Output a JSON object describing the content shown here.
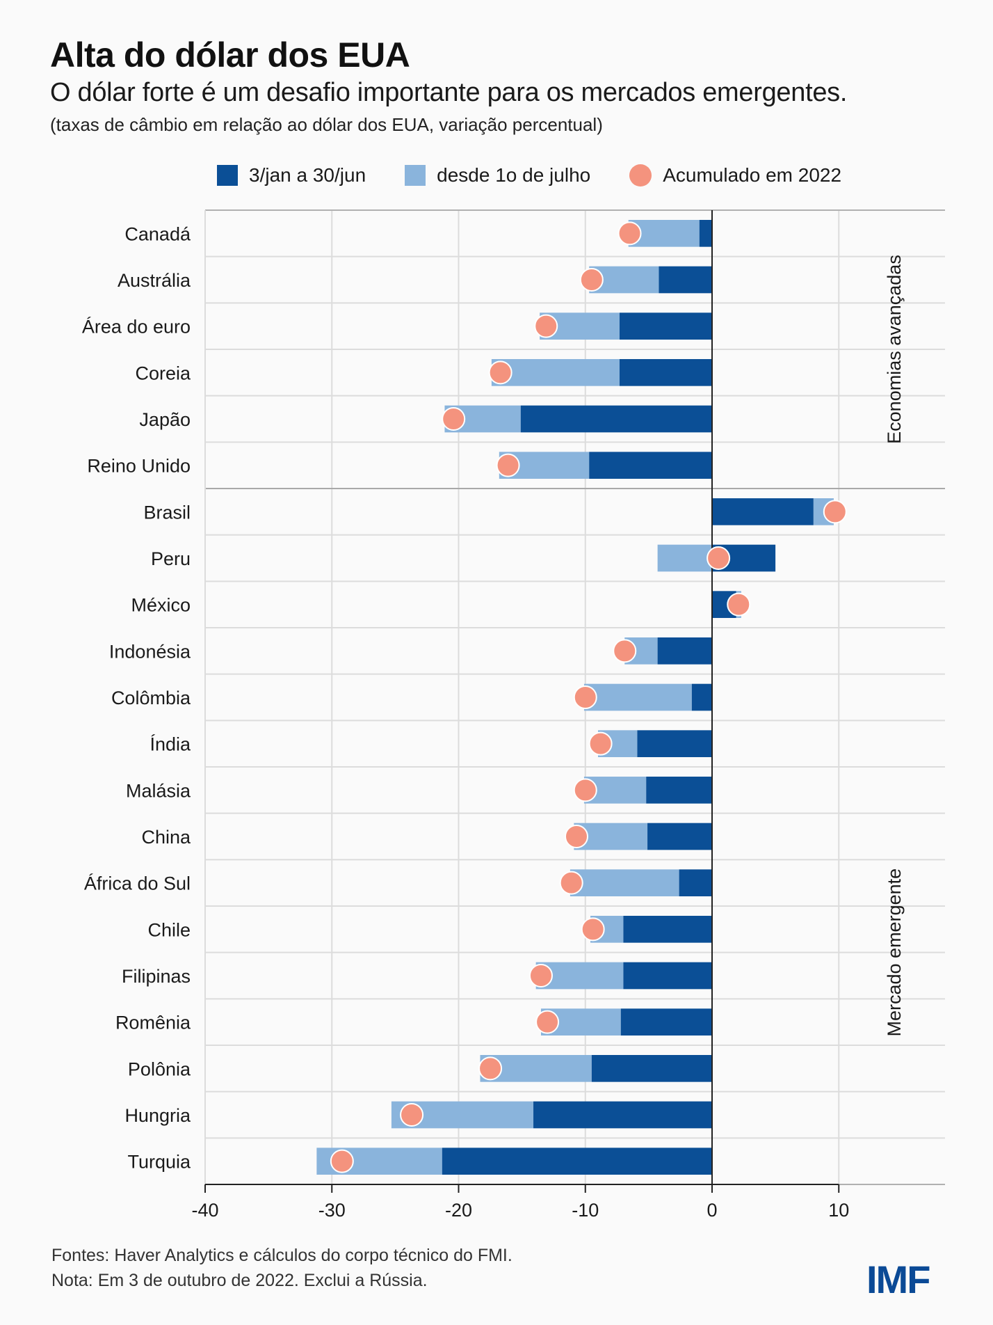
{
  "header": {
    "title": "Alta do dólar dos EUA",
    "subtitle": "O dólar forte é um desafio importante para os mercados emergentes.",
    "unit_note": "(taxas de câmbio em relação ao dólar dos EUA, variação percentual)"
  },
  "legend": [
    {
      "label": "3/jan a 30/jun",
      "color": "#0b4f96",
      "shape": "square"
    },
    {
      "label": "desde 1o de julho",
      "color": "#8ab4dc",
      "shape": "square"
    },
    {
      "label": "Acumulado em 2022",
      "color": "#f4937e",
      "shape": "circle"
    }
  ],
  "footer": {
    "sources": "Fontes: Haver Analytics e cálculos do corpo técnico do FMI.",
    "note": "Nota: Em 3 de outubro de 2022. Exclui a Rússia.",
    "logo": "IMF"
  },
  "chart_data": {
    "type": "bar",
    "orientation": "horizontal",
    "stacked": true,
    "title": "Alta do dólar dos EUA",
    "xlabel": "",
    "ylabel": "",
    "xlim": [
      -40,
      18
    ],
    "xticks": [
      -40,
      -30,
      -20,
      -10,
      0,
      10
    ],
    "grid": true,
    "legend_position": "top",
    "colors": {
      "h1": "#0b4f96",
      "h2": "#8ab4dc",
      "ytd": "#f4937e"
    },
    "groups": [
      {
        "label": "Economias avançadas",
        "start": 0,
        "end": 5
      },
      {
        "label": "Mercado emergente",
        "start": 6,
        "end": 20
      }
    ],
    "categories": [
      "Canadá",
      "Austrália",
      "Área do euro",
      "Coreia",
      "Japão",
      "Reino Unido",
      "Brasil",
      "Peru",
      "México",
      "Indonésia",
      "Colômbia",
      "Índia",
      "Malásia",
      "China",
      "África do Sul",
      "Chile",
      "Filipinas",
      "Romênia",
      "Polônia",
      "Hungria",
      "Turquia"
    ],
    "series": [
      {
        "name": "3/jan a 30/jun",
        "kind": "bar",
        "values": [
          -1.0,
          -4.2,
          -7.3,
          -7.3,
          -15.1,
          -9.7,
          8.0,
          5.0,
          1.9,
          -4.3,
          -1.6,
          -5.9,
          -5.2,
          -5.1,
          -2.6,
          -7.0,
          -7.0,
          -7.2,
          -9.5,
          -14.1,
          -21.3
        ]
      },
      {
        "name": "desde 1o de julho",
        "kind": "bar",
        "values": [
          -5.6,
          -5.5,
          -6.3,
          -10.1,
          -6.0,
          -7.1,
          1.6,
          -4.3,
          0.4,
          -2.6,
          -8.5,
          -3.1,
          -4.9,
          -5.8,
          -8.6,
          -2.6,
          -6.9,
          -6.3,
          -8.8,
          -11.2,
          -9.9
        ]
      },
      {
        "name": "Acumulado em 2022",
        "kind": "point",
        "values": [
          -6.5,
          -9.5,
          -13.1,
          -16.7,
          -20.4,
          -16.1,
          9.7,
          0.5,
          2.1,
          -6.9,
          -10.0,
          -8.8,
          -10.0,
          -10.7,
          -11.1,
          -9.4,
          -13.5,
          -13.0,
          -17.5,
          -23.7,
          -29.2
        ]
      }
    ]
  }
}
